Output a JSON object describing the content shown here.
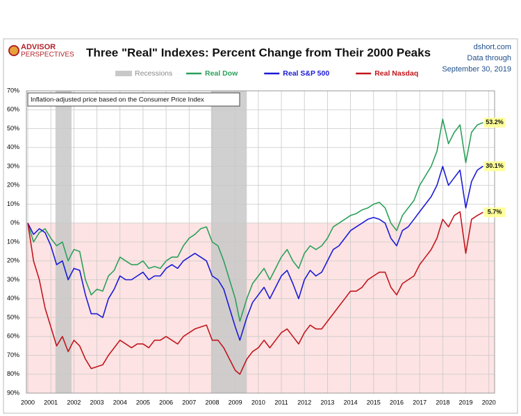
{
  "chart_data": {
    "type": "line",
    "title": "Three \"Real\" Indexes: Percent Change from Their 2000 Peaks",
    "logo": [
      "ADVISOR",
      "PERSPECTIVES"
    ],
    "source": [
      "dshort.com",
      "Data through",
      "September 30, 2019"
    ],
    "annotation": "Inflation-adjusted  price based on the Consumer Price Index",
    "recessions": {
      "name": "Recessions",
      "color": "#c8c8c8",
      "periods": [
        {
          "start": 2001.2,
          "end": 2001.9
        },
        {
          "start": 2007.95,
          "end": 2009.5
        }
      ]
    },
    "x": [
      2000,
      2000.25,
      2000.5,
      2000.75,
      2001,
      2001.25,
      2001.5,
      2001.75,
      2002,
      2002.25,
      2002.5,
      2002.75,
      2003,
      2003.25,
      2003.5,
      2003.75,
      2004,
      2004.25,
      2004.5,
      2004.75,
      2005,
      2005.25,
      2005.5,
      2005.75,
      2006,
      2006.25,
      2006.5,
      2006.75,
      2007,
      2007.25,
      2007.5,
      2007.75,
      2008,
      2008.25,
      2008.5,
      2008.75,
      2009,
      2009.2,
      2009.5,
      2009.75,
      2010,
      2010.25,
      2010.5,
      2010.75,
      2011,
      2011.25,
      2011.5,
      2011.75,
      2012,
      2012.25,
      2012.5,
      2012.75,
      2013,
      2013.25,
      2013.5,
      2013.75,
      2014,
      2014.25,
      2014.5,
      2014.75,
      2015,
      2015.25,
      2015.5,
      2015.75,
      2016,
      2016.25,
      2016.5,
      2016.75,
      2017,
      2017.25,
      2017.5,
      2017.75,
      2018,
      2018.25,
      2018.5,
      2018.75,
      2019,
      2019.25,
      2019.5,
      2019.75
    ],
    "series": [
      {
        "name": "Real Dow",
        "color": "#2aa05a",
        "end_label": {
          "value": 53.2,
          "label": "53.2%"
        },
        "values": [
          0,
          -10,
          -5,
          -3,
          -8,
          -12,
          -10,
          -20,
          -14,
          -15,
          -30,
          -38,
          -35,
          -36,
          -28,
          -25,
          -18,
          -20,
          -22,
          -22,
          -20,
          -24,
          -23,
          -24,
          -20,
          -18,
          -18,
          -12,
          -8,
          -6,
          -3,
          -2,
          -10,
          -12,
          -20,
          -30,
          -40,
          -52,
          -40,
          -32,
          -28,
          -24,
          -30,
          -24,
          -18,
          -14,
          -20,
          -24,
          -16,
          -12,
          -14,
          -12,
          -8,
          -2,
          0,
          2,
          4,
          5,
          7,
          8,
          10,
          11,
          8,
          0,
          -4,
          4,
          8,
          12,
          20,
          25,
          30,
          38,
          55,
          42,
          48,
          52,
          32,
          48,
          52,
          53.2
        ]
      },
      {
        "name": "Real S&P 500",
        "color": "#1a1ad6",
        "end_label": {
          "value": 30.1,
          "label": "30.1%"
        },
        "values": [
          0,
          -6,
          -3,
          -5,
          -12,
          -22,
          -20,
          -30,
          -24,
          -25,
          -38,
          -48,
          -48,
          -50,
          -40,
          -35,
          -28,
          -30,
          -30,
          -28,
          -26,
          -30,
          -28,
          -28,
          -24,
          -22,
          -24,
          -20,
          -18,
          -16,
          -18,
          -20,
          -28,
          -30,
          -35,
          -45,
          -55,
          -62,
          -50,
          -42,
          -38,
          -34,
          -40,
          -34,
          -28,
          -25,
          -32,
          -40,
          -30,
          -25,
          -28,
          -26,
          -20,
          -14,
          -12,
          -8,
          -4,
          -2,
          0,
          2,
          3,
          2,
          0,
          -8,
          -12,
          -4,
          -2,
          2,
          6,
          10,
          14,
          20,
          30,
          20,
          24,
          28,
          8,
          22,
          28,
          30.1
        ]
      },
      {
        "name": "Real Nasdaq",
        "color": "#c0161c",
        "end_label": {
          "value": 5.7,
          "label": "5.7%"
        },
        "values": [
          0,
          -20,
          -30,
          -45,
          -55,
          -65,
          -60,
          -68,
          -62,
          -65,
          -72,
          -77,
          -76,
          -75,
          -70,
          -66,
          -62,
          -64,
          -66,
          -64,
          -64,
          -66,
          -62,
          -62,
          -60,
          -62,
          -64,
          -60,
          -58,
          -56,
          -55,
          -54,
          -62,
          -62,
          -66,
          -72,
          -78,
          -80,
          -72,
          -68,
          -66,
          -62,
          -66,
          -62,
          -58,
          -56,
          -60,
          -64,
          -58,
          -54,
          -56,
          -56,
          -52,
          -48,
          -44,
          -40,
          -36,
          -36,
          -34,
          -30,
          -28,
          -26,
          -26,
          -34,
          -38,
          -32,
          -30,
          -28,
          -22,
          -18,
          -14,
          -8,
          2,
          -2,
          4,
          6,
          -16,
          2,
          4,
          5.7
        ]
      }
    ],
    "xlim": [
      2000,
      2020.25
    ],
    "xticks": [
      2000,
      2001,
      2002,
      2003,
      2004,
      2005,
      2006,
      2007,
      2008,
      2009,
      2010,
      2011,
      2012,
      2013,
      2014,
      2015,
      2016,
      2017,
      2018,
      2019,
      2020
    ],
    "ylim": [
      -90,
      70
    ],
    "yticks": [
      {
        "value": 70,
        "label": "70%"
      },
      {
        "value": 60,
        "label": "60%"
      },
      {
        "value": 50,
        "label": "50%"
      },
      {
        "value": 40,
        "label": "40%"
      },
      {
        "value": 30,
        "label": "30%"
      },
      {
        "value": 20,
        "label": "20%"
      },
      {
        "value": 10,
        "label": "10%"
      },
      {
        "value": 0,
        "label": "0%"
      },
      {
        "value": -10,
        "label": "10%"
      },
      {
        "value": -20,
        "label": "20%"
      },
      {
        "value": -30,
        "label": "30%"
      },
      {
        "value": -40,
        "label": "40%"
      },
      {
        "value": -50,
        "label": "50%"
      },
      {
        "value": -60,
        "label": "60%"
      },
      {
        "value": -70,
        "label": "70%"
      },
      {
        "value": -80,
        "label": "80%"
      },
      {
        "value": -90,
        "label": "90%"
      }
    ],
    "grid": true
  }
}
